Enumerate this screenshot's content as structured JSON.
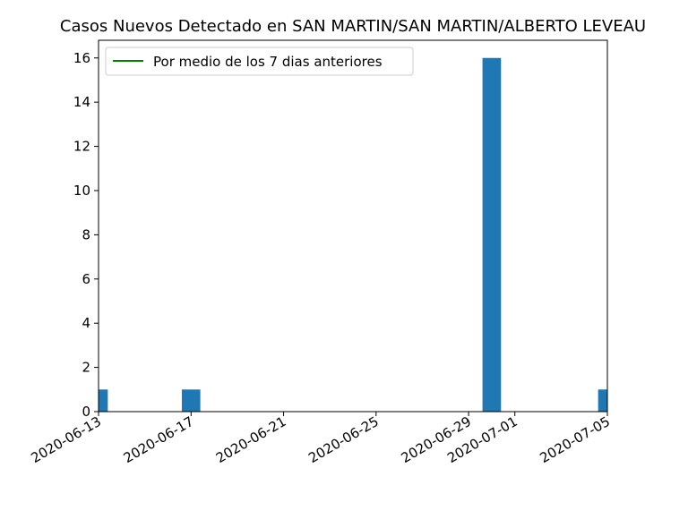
{
  "chart_data": {
    "type": "bar",
    "title": "Casos Nuevos Detectado en SAN MARTIN/SAN MARTIN/ALBERTO LEVEAU",
    "xlabel": "",
    "ylabel": "",
    "x": [
      "2020-06-13",
      "2020-06-17",
      "2020-06-30",
      "2020-07-05"
    ],
    "values": [
      1,
      1,
      16,
      1
    ],
    "xlim": [
      "2020-06-13",
      "2020-07-05"
    ],
    "ylim": [
      0,
      16.8
    ],
    "xticks": [
      "2020-06-13",
      "2020-06-17",
      "2020-06-21",
      "2020-06-25",
      "2020-06-29",
      "2020-07-01",
      "2020-07-05"
    ],
    "yticks": [
      0,
      2,
      4,
      6,
      8,
      10,
      12,
      14,
      16
    ],
    "grid": false,
    "legend": {
      "placement": "top-left",
      "entries": [
        {
          "label": "Por medio de los 7 dias anteriores",
          "color": "#008000",
          "marker": "line"
        }
      ]
    },
    "colors": {
      "bar": "#1f77b4",
      "legend_line": "#008000"
    }
  }
}
